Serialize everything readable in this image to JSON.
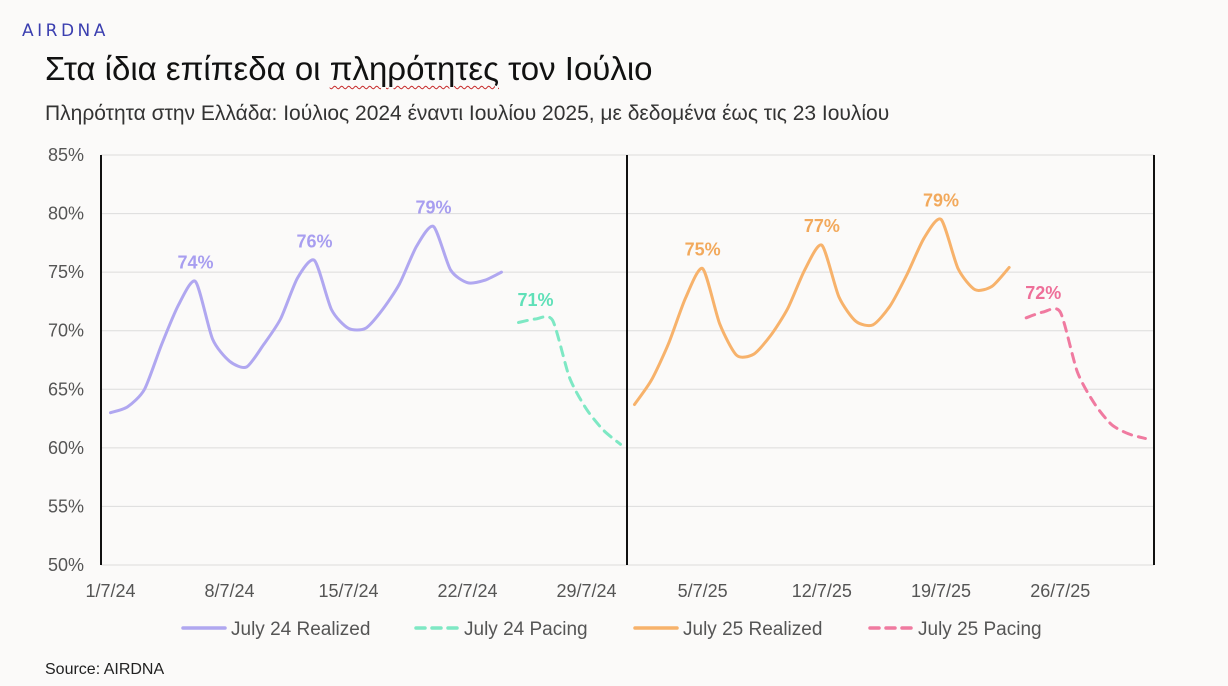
{
  "header": {
    "logo": "AIRDNA",
    "title_pre": "Στα ίδια επίπεδα οι ",
    "title_squig": "πληρότητες",
    "title_post": " τον Ιούλιο",
    "subtitle": "Πληρότητα στην Ελλάδα: Ιούλιος 2024 έναντι Ιουλίου 2025, με δεδομένα έως τις 23 Ιουλίου"
  },
  "footer": {
    "source": "Source: AIRDNA"
  },
  "colors": {
    "july24_realized": "#b0a7f0",
    "july24_pacing": "#7ee8c4",
    "july25_realized": "#f7b26b",
    "july25_pacing": "#f07aa0",
    "label24": "#a89ef0",
    "label24p": "#5fe0b8",
    "label25": "#f2a95c",
    "label25p": "#ee6f99"
  },
  "chart_data": {
    "type": "line",
    "ylim": [
      50,
      85
    ],
    "yticks": [
      "50%",
      "55%",
      "60%",
      "65%",
      "70%",
      "75%",
      "80%",
      "85%"
    ],
    "ytick_values": [
      50,
      55,
      60,
      65,
      70,
      75,
      80,
      85
    ],
    "x_days": 31,
    "xticks_2024": [
      {
        "day": 1,
        "label": "1/7/24"
      },
      {
        "day": 8,
        "label": "8/7/24"
      },
      {
        "day": 15,
        "label": "15/7/24"
      },
      {
        "day": 22,
        "label": "22/7/24"
      },
      {
        "day": 29,
        "label": "29/7/24"
      }
    ],
    "xticks_2025": [
      {
        "day": 5,
        "label": "5/7/25"
      },
      {
        "day": 12,
        "label": "12/7/25"
      },
      {
        "day": 19,
        "label": "19/7/25"
      },
      {
        "day": 26,
        "label": "26/7/25"
      }
    ],
    "series": [
      {
        "name": "July 24 Realized",
        "panel": 0,
        "style": "solid",
        "color_key": "july24_realized",
        "x": [
          1,
          2,
          3,
          4,
          5,
          6,
          7,
          8,
          9,
          10,
          11,
          12,
          13,
          14,
          15,
          16,
          17,
          18,
          19,
          20,
          21,
          22,
          23,
          24
        ],
        "y": [
          63.0,
          63.5,
          65.0,
          68.8,
          72.2,
          74.2,
          69.3,
          67.4,
          66.9,
          68.8,
          71.0,
          74.5,
          76.0,
          71.8,
          70.2,
          70.2,
          71.8,
          74.0,
          77.2,
          78.9,
          75.2,
          74.1,
          74.3,
          75.0
        ]
      },
      {
        "name": "July 24 Pacing",
        "panel": 0,
        "style": "dashed",
        "color_key": "july24_pacing",
        "x": [
          25,
          26,
          27,
          28,
          29,
          30,
          31
        ],
        "y": [
          70.7,
          71.0,
          70.9,
          66.0,
          63.3,
          61.5,
          60.3
        ]
      },
      {
        "name": "July 25 Realized",
        "panel": 1,
        "style": "solid",
        "color_key": "july25_realized",
        "x": [
          1,
          2,
          3,
          4,
          5,
          6,
          7,
          8,
          9,
          10,
          11,
          12,
          13,
          14,
          15,
          16,
          17,
          18,
          19,
          20,
          21,
          22,
          23
        ],
        "y": [
          63.7,
          65.8,
          68.9,
          72.8,
          75.3,
          70.6,
          67.9,
          68.0,
          69.6,
          71.9,
          75.2,
          77.3,
          72.9,
          70.8,
          70.5,
          72.1,
          74.8,
          77.9,
          79.5,
          75.3,
          73.5,
          73.8,
          75.4
        ]
      },
      {
        "name": "July 25 Pacing",
        "panel": 1,
        "style": "dashed",
        "color_key": "july25_pacing",
        "x": [
          24,
          25,
          26,
          27,
          28,
          29,
          30,
          31
        ],
        "y": [
          71.1,
          71.6,
          71.6,
          66.5,
          63.8,
          62.0,
          61.2,
          60.8
        ]
      }
    ],
    "annotations": [
      {
        "panel": 0,
        "x": 6,
        "y": 74.2,
        "text": "74%",
        "color_key": "label24"
      },
      {
        "panel": 0,
        "x": 13,
        "y": 76.0,
        "text": "76%",
        "color_key": "label24"
      },
      {
        "panel": 0,
        "x": 20,
        "y": 78.9,
        "text": "79%",
        "color_key": "label24"
      },
      {
        "panel": 0,
        "x": 26,
        "y": 71.0,
        "text": "71%",
        "color_key": "label24p"
      },
      {
        "panel": 1,
        "x": 5,
        "y": 75.3,
        "text": "75%",
        "color_key": "label25"
      },
      {
        "panel": 1,
        "x": 12,
        "y": 77.3,
        "text": "77%",
        "color_key": "label25"
      },
      {
        "panel": 1,
        "x": 19,
        "y": 79.5,
        "text": "79%",
        "color_key": "label25"
      },
      {
        "panel": 1,
        "x": 25,
        "y": 71.6,
        "text": "72%",
        "color_key": "label25p"
      }
    ],
    "legend": [
      {
        "label": "July 24 Realized",
        "style": "solid",
        "color_key": "july24_realized"
      },
      {
        "label": "July 24 Pacing",
        "style": "dashed",
        "color_key": "july24_pacing"
      },
      {
        "label": "July 25 Realized",
        "style": "solid",
        "color_key": "july25_realized"
      },
      {
        "label": "July 25 Pacing",
        "style": "dashed",
        "color_key": "july25_pacing"
      }
    ],
    "legend_position": "bottom",
    "grid": true
  }
}
